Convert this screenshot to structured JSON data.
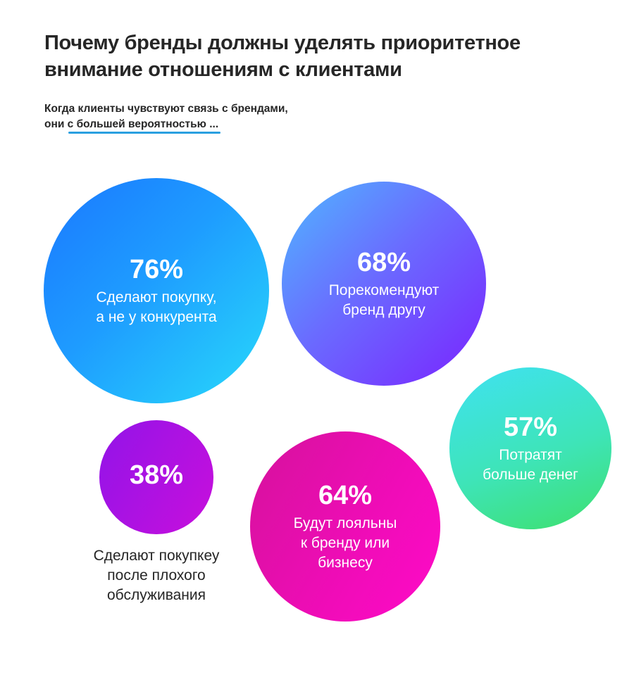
{
  "header": {
    "title": "Почему бренды должны уделять приоритетное внимание отношениям с клиентами",
    "subtitle_line1": "Когда клиенты чувствуют связь с брендами,",
    "subtitle_line2": "они с большей вероятностью ...",
    "accent_color": "#2a9fe0"
  },
  "chart_data": {
    "type": "bubble",
    "title": "Почему бренды должны уделять приоритетное внимание отношениям с клиентами",
    "bubbles": [
      {
        "value": 76,
        "value_label": "76%",
        "label_lines": [
          "Сделают покупку,",
          "а не у конкурента"
        ],
        "colors": [
          "#1a78ff",
          "#28dafa"
        ]
      },
      {
        "value": 68,
        "value_label": "68%",
        "label_lines": [
          "Порекомендуют",
          "бренд другу"
        ],
        "colors": [
          "#4fb8ff",
          "#7a22ff"
        ]
      },
      {
        "value": 57,
        "value_label": "57%",
        "label_lines": [
          "Потратят",
          "больше денег"
        ],
        "colors": [
          "#3fe2f2",
          "#3ee06c"
        ]
      },
      {
        "value": 38,
        "value_label": "38%",
        "label_lines": [
          "Сделают покупкеу",
          "после плохого",
          "обслуживания"
        ],
        "colors": [
          "#9214e8",
          "#c80fdc"
        ]
      },
      {
        "value": 64,
        "value_label": "64%",
        "label_lines": [
          "Будут лояльны",
          "к бренду или",
          "бизнесу"
        ],
        "colors": [
          "#d5129c",
          "#ff0ac8"
        ]
      }
    ]
  }
}
